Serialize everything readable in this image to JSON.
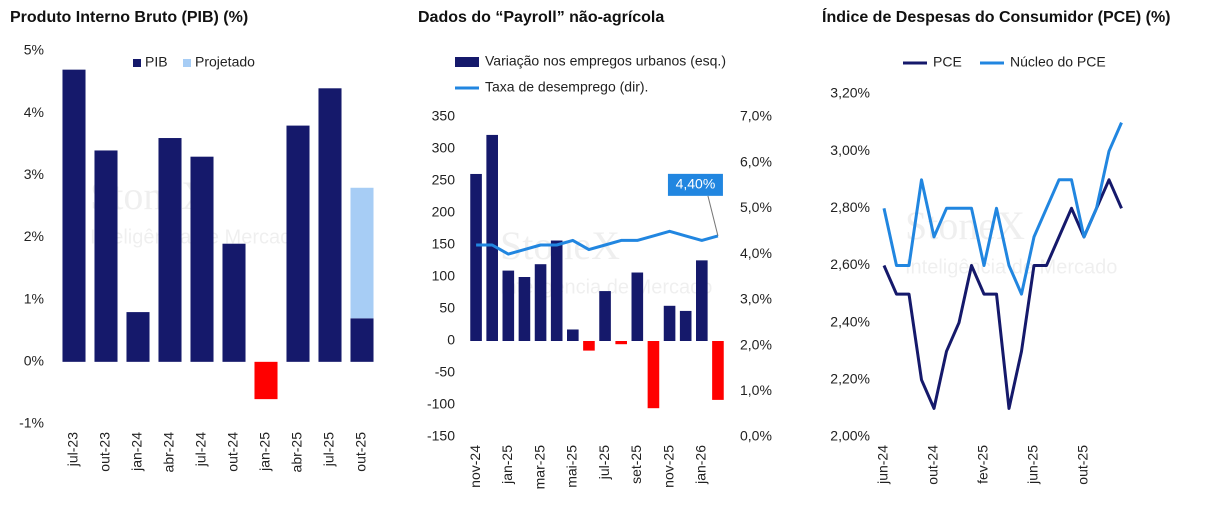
{
  "watermark": {
    "brand": "StoneX",
    "tagline": "Inteligência de Mercado"
  },
  "chart_data": [
    {
      "type": "bar",
      "title": "Produto Interno Bruto (PIB)  (%)",
      "categories": [
        "jul-23",
        "out-23",
        "jan-24",
        "abr-24",
        "jul-24",
        "out-24",
        "jan-25",
        "abr-25",
        "jul-25",
        "out-25"
      ],
      "series": [
        {
          "name": "PIB",
          "color": "#15196b",
          "negative_color": "#ff0000",
          "values": [
            4.7,
            3.4,
            0.8,
            3.6,
            3.3,
            1.9,
            -0.6,
            3.8,
            4.4,
            0.7
          ]
        },
        {
          "name": "Projetado",
          "color": "#a7cdf5",
          "values": [
            null,
            null,
            null,
            null,
            null,
            null,
            null,
            null,
            null,
            2.1
          ]
        }
      ],
      "stacked": true,
      "ylim": [
        -1,
        5
      ],
      "yticks": [
        {
          "value": -1,
          "label": "-1%"
        },
        {
          "value": 0,
          "label": "0%"
        },
        {
          "value": 1,
          "label": "1%"
        },
        {
          "value": 2,
          "label": "2%"
        },
        {
          "value": 3,
          "label": "3%"
        },
        {
          "value": 4,
          "label": "4%"
        },
        {
          "value": 5,
          "label": "5%"
        }
      ],
      "grid": false,
      "legend": "top"
    },
    {
      "type": "bar",
      "title": "Dados do “Payroll” não-agrícola",
      "categories": [
        "nov-24",
        null,
        "jan-25",
        null,
        "mar-25",
        null,
        "mai-25",
        null,
        "jul-25",
        null,
        "set-25",
        null,
        "nov-25",
        null,
        "jan-26",
        null
      ],
      "series": [
        {
          "name": "Variação nos empregos urbanos (esq.)",
          "color": "#15196b",
          "negative_color": "#ff0000",
          "values": [
            261,
            322,
            110,
            100,
            120,
            157,
            18,
            -15,
            78,
            -5,
            107,
            -105,
            55,
            47,
            126,
            -92
          ]
        },
        {
          "name": "Taxa de desemprego (dir).",
          "type": "line",
          "axis": "y2",
          "color": "#2186e0",
          "values": [
            4.2,
            4.2,
            4.0,
            4.1,
            4.2,
            4.2,
            4.3,
            4.1,
            4.2,
            4.3,
            4.3,
            4.4,
            4.5,
            4.4,
            4.3,
            4.4
          ],
          "value_labels": [
            null,
            null,
            null,
            null,
            null,
            null,
            null,
            null,
            null,
            null,
            null,
            null,
            null,
            null,
            null,
            "4,40%"
          ]
        }
      ],
      "ylim": [
        -150,
        350
      ],
      "yticks": [
        -150,
        -100,
        -50,
        0,
        50,
        100,
        150,
        200,
        250,
        300,
        350
      ],
      "y2lim": [
        0,
        7
      ],
      "y2ticks": [
        {
          "value": 0,
          "label": "0,0%"
        },
        {
          "value": 1,
          "label": "1,0%"
        },
        {
          "value": 2,
          "label": "2,0%"
        },
        {
          "value": 3,
          "label": "3,0%"
        },
        {
          "value": 4,
          "label": "4,0%"
        },
        {
          "value": 5,
          "label": "5,0%"
        },
        {
          "value": 6,
          "label": "6,0%"
        },
        {
          "value": 7,
          "label": "7,0%"
        }
      ],
      "grid": false,
      "legend": "top-left"
    },
    {
      "type": "line",
      "title": "Índice de Despesas do Consumidor (PCE) (%)",
      "categories": [
        "jun-24",
        null,
        null,
        null,
        "out-24",
        null,
        null,
        null,
        "fev-25",
        null,
        null,
        null,
        "jun-25",
        null,
        null,
        null,
        "out-25",
        null,
        null,
        null
      ],
      "series": [
        {
          "name": "PCE",
          "color": "#15196b",
          "values": [
            2.6,
            2.5,
            2.5,
            2.2,
            2.1,
            2.3,
            2.4,
            2.6,
            2.5,
            2.5,
            2.1,
            2.3,
            2.6,
            2.6,
            2.7,
            2.8,
            2.7,
            2.8,
            2.9,
            2.8
          ]
        },
        {
          "name": "Núcleo do PCE",
          "color": "#2186e0",
          "values": [
            2.8,
            2.6,
            2.6,
            2.9,
            2.7,
            2.8,
            2.8,
            2.8,
            2.6,
            2.8,
            2.6,
            2.5,
            2.7,
            2.8,
            2.9,
            2.9,
            2.7,
            2.8,
            3.0,
            3.1
          ]
        }
      ],
      "ylim": [
        2.0,
        3.2
      ],
      "yticks": [
        {
          "value": 2.0,
          "label": "2,00%"
        },
        {
          "value": 2.2,
          "label": "2,20%"
        },
        {
          "value": 2.4,
          "label": "2,40%"
        },
        {
          "value": 2.6,
          "label": "2,60%"
        },
        {
          "value": 2.8,
          "label": "2,80%"
        },
        {
          "value": 3.0,
          "label": "3,00%"
        },
        {
          "value": 3.2,
          "label": "3,20%"
        }
      ],
      "grid": false,
      "legend": "top"
    }
  ]
}
